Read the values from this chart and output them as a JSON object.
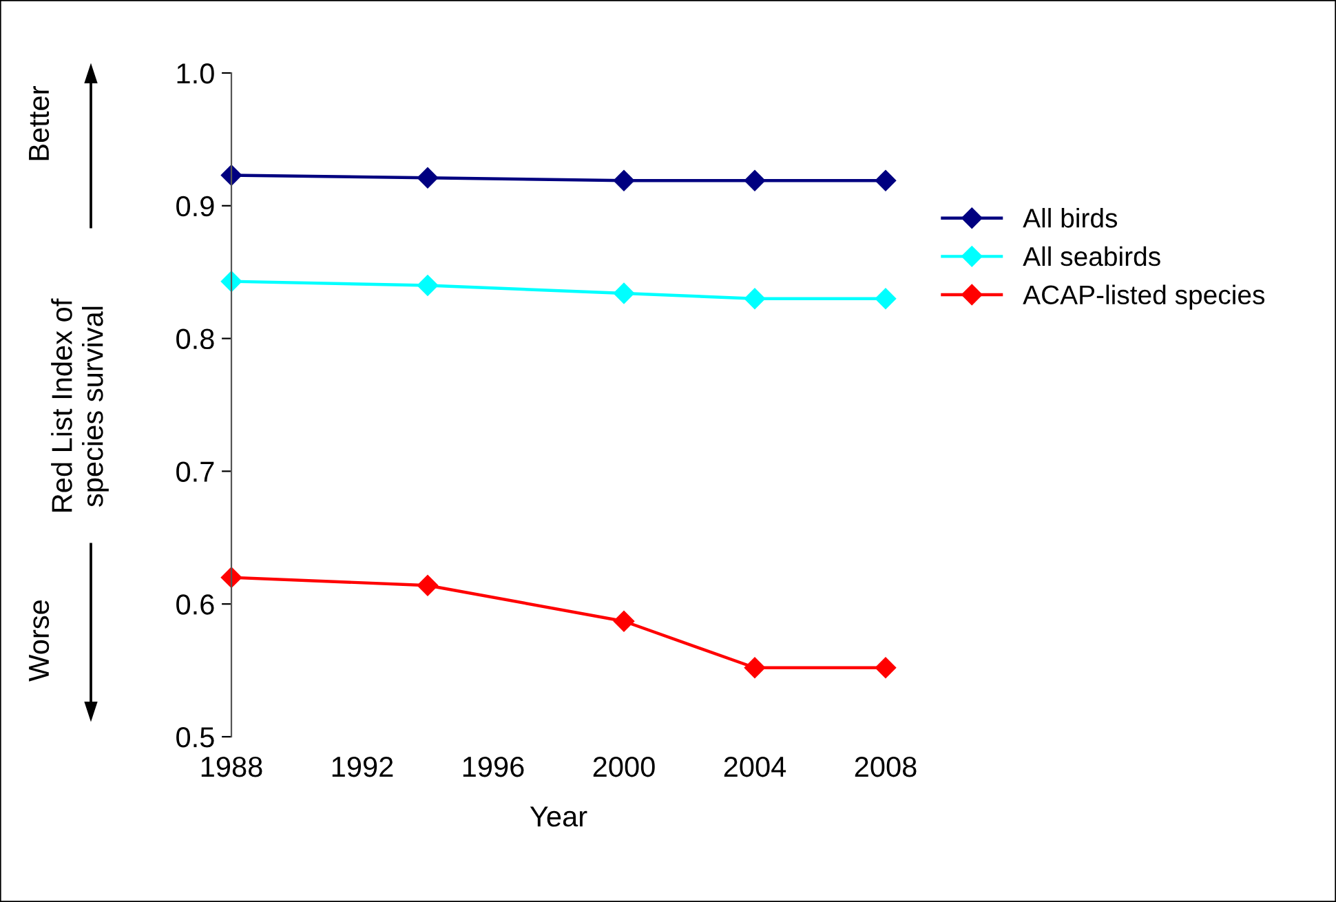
{
  "chart_data": {
    "type": "line",
    "xlabel": "Year",
    "ylabel": "Red List Index of\nspecies survival",
    "x": [
      1988,
      1994,
      2000,
      2004,
      2008
    ],
    "series": [
      {
        "name": "All birds",
        "color": "#000080",
        "values": [
          0.923,
          0.921,
          0.919,
          0.919,
          0.919
        ]
      },
      {
        "name": "All seabirds",
        "color": "#00ffff",
        "values": [
          0.843,
          0.84,
          0.834,
          0.83,
          0.83
        ]
      },
      {
        "name": "ACAP-listed species",
        "color": "#ff0000",
        "values": [
          0.62,
          0.614,
          0.587,
          0.552,
          0.552
        ]
      }
    ],
    "xlim": [
      1988,
      2008
    ],
    "xticks": [
      1988,
      1992,
      1996,
      2000,
      2004,
      2008
    ],
    "ylim": [
      0.5,
      1.0
    ],
    "yticks": [
      {
        "value": 0.5,
        "label": "0.5"
      },
      {
        "value": 0.6,
        "label": "0.6"
      },
      {
        "value": 0.7,
        "label": "0.7"
      },
      {
        "value": 0.8,
        "label": "0.8"
      },
      {
        "value": 0.9,
        "label": "0.9"
      },
      {
        "value": 1.0,
        "label": "1.0"
      }
    ],
    "annotations": [
      "Better",
      "Worse"
    ],
    "marker": "diamond",
    "line_style": "solid",
    "grid": false,
    "legend": "right"
  }
}
